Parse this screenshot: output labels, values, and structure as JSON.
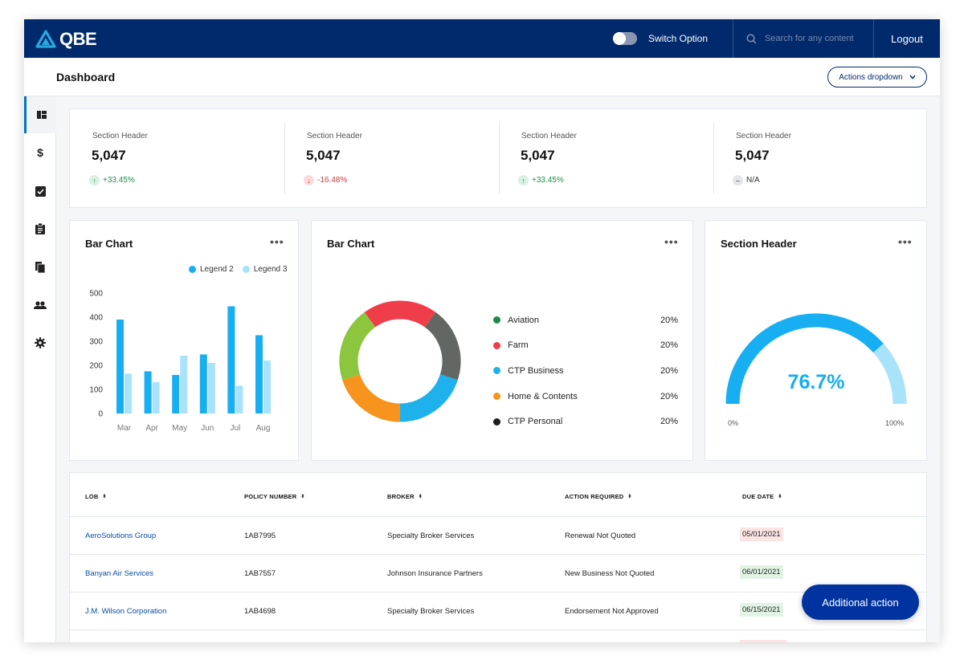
{
  "header": {
    "logo": "QBE",
    "switch_label": "Switch Option",
    "search_placeholder": "Search for any content",
    "logout_label": "Logout"
  },
  "subheader": {
    "title": "Dashboard",
    "actions_label": "Actions dropdown"
  },
  "sidebar": {
    "items": [
      {
        "icon": "dashboard-icon",
        "active": true
      },
      {
        "icon": "dollar-icon"
      },
      {
        "icon": "checkbox-icon"
      },
      {
        "icon": "clipboard-icon"
      },
      {
        "icon": "documents-icon"
      },
      {
        "icon": "people-icon"
      },
      {
        "icon": "gear-icon"
      }
    ]
  },
  "stats": [
    {
      "label": "Section Header",
      "value": "5,047",
      "change": "+33.45%",
      "trend": "up"
    },
    {
      "label": "Section Header",
      "value": "5,047",
      "change": "-16.48%",
      "trend": "down"
    },
    {
      "label": "Section Header",
      "value": "5,047",
      "change": "+33.45%",
      "trend": "up"
    },
    {
      "label": "Section Header",
      "value": "5,047",
      "change": "N/A",
      "trend": "none"
    }
  ],
  "colors": {
    "brand": "#002a6c",
    "accent": "#0075c9",
    "up": "#1a8f4a",
    "down": "#c93a3a",
    "series_dark": "#17aef2",
    "series_light": "#a9e2fb",
    "fab": "#0033a0"
  },
  "bar_card": {
    "title": "Bar Chart",
    "more": "•••"
  },
  "donut_card": {
    "title": "Bar Chart",
    "more": "•••",
    "items": [
      {
        "label": "Aviation",
        "value": "20%",
        "color": "#1e8a4a"
      },
      {
        "label": "Farm",
        "value": "20%",
        "color": "#ef3e4a"
      },
      {
        "label": "CTP Business",
        "value": "20%",
        "color": "#1fb1ec"
      },
      {
        "label": "Home & Contents",
        "value": "20%",
        "color": "#f7941d"
      },
      {
        "label": "CTP Personal",
        "value": "20%",
        "color": "#1e1e1e"
      }
    ]
  },
  "gauge_card": {
    "title": "Section Header",
    "more": "•••",
    "value_label": "76.7%",
    "value": 76.7,
    "min_label": "0%",
    "max_label": "100%"
  },
  "chart_data": [
    {
      "type": "bar",
      "title": "Bar Chart",
      "categories": [
        "Mar",
        "Apr",
        "May",
        "Jun",
        "Jul",
        "Aug"
      ],
      "series": [
        {
          "name": "Legend 2",
          "values": [
            390,
            175,
            160,
            245,
            445,
            325
          ],
          "color": "#17aef2"
        },
        {
          "name": "Legend 3",
          "values": [
            165,
            130,
            240,
            210,
            115,
            220
          ],
          "color": "#a9e2fb"
        }
      ],
      "yticks": [
        0,
        100,
        200,
        300,
        400,
        500
      ],
      "ylim": [
        0,
        500
      ],
      "legend": "top-right",
      "grid": false
    },
    {
      "type": "pie",
      "title": "Bar Chart",
      "labels": [
        "Aviation",
        "Farm",
        "CTP Business",
        "Home & Contents",
        "CTP Personal"
      ],
      "values": [
        20,
        20,
        20,
        20,
        20
      ],
      "ring_segments": [
        {
          "color": "#ef3e4a",
          "value": 20
        },
        {
          "color": "#626763",
          "value": 20
        },
        {
          "color": "#1fb1ec",
          "value": 20
        },
        {
          "color": "#f7941d",
          "value": 20
        },
        {
          "color": "#8cc63f",
          "value": 20
        }
      ]
    }
  ],
  "table": {
    "columns": [
      "LOB",
      "POLICY NUMBER",
      "BROKER",
      "ACTION REQUIRED",
      "DUE DATE"
    ],
    "rows": [
      {
        "lob": "AeroSolutions Group",
        "policy": "1AB7995",
        "broker": "Specialty Broker Services",
        "action": "Renewal Not Quoted",
        "due": "05/01/2021",
        "status": "red"
      },
      {
        "lob": "Banyan Air Services",
        "policy": "1AB7557",
        "broker": "Johnson Insurance Partners",
        "action": "New Business Not Quoted",
        "due": "06/01/2021",
        "status": "green"
      },
      {
        "lob": "J.M. Wilson Corporation",
        "policy": "1AB4698",
        "broker": "Specialty Broker Services",
        "action": "Endorsement Not Approved",
        "due": "06/15/2021",
        "status": "green"
      }
    ]
  },
  "fab_label": "Additional action"
}
